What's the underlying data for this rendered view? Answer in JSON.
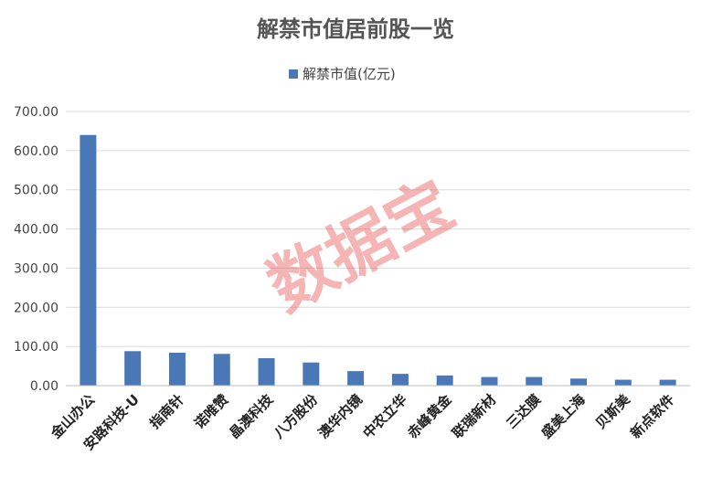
{
  "chart_data": {
    "type": "bar",
    "title": "解禁市值居前股一览",
    "legend": {
      "label": "解禁市值(亿元)",
      "color": "#4a78b6",
      "placement": "top"
    },
    "categories": [
      "金山办公",
      "安路科技-U",
      "指南针",
      "诺唯赞",
      "晶澳科技",
      "八方股份",
      "澳华内镜",
      "中农立华",
      "赤峰黄金",
      "联瑞新材",
      "三达膜",
      "盛美上海",
      "贝斯美",
      "新点软件"
    ],
    "series": [
      {
        "name": "解禁市值(亿元)",
        "values": [
          640,
          88,
          84,
          81,
          70,
          59,
          37,
          30,
          26,
          22,
          22,
          18,
          15,
          15
        ]
      }
    ],
    "yticks": [
      "0.00",
      "100.00",
      "200.00",
      "300.00",
      "400.00",
      "500.00",
      "600.00",
      "700.00"
    ],
    "ylim": [
      0,
      700
    ],
    "grid": true
  },
  "watermark": {
    "text": "数据宝"
  }
}
